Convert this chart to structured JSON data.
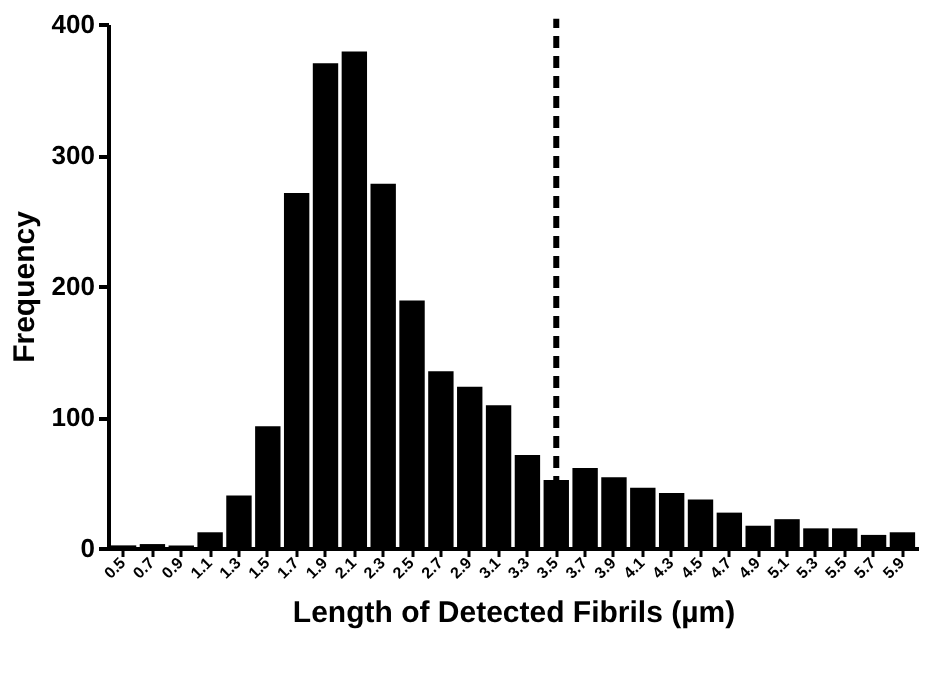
{
  "chart_data": {
    "type": "bar",
    "xlabel": "Length of Detected Fibrils (µm)",
    "ylabel": "Frequency",
    "categories": [
      "0.5",
      "0.7",
      "0.9",
      "1.1",
      "1.3",
      "1.5",
      "1.7",
      "1.9",
      "2.1",
      "2.3",
      "2.5",
      "2.7",
      "2.9",
      "3.1",
      "3.3",
      "3.5",
      "3.7",
      "3.9",
      "4.1",
      "4.3",
      "4.5",
      "4.7",
      "4.9",
      "5.1",
      "5.3",
      "5.5",
      "5.7",
      "5.9"
    ],
    "values": [
      2,
      3,
      2,
      12,
      40,
      93,
      271,
      370,
      379,
      278,
      189,
      135,
      123,
      109,
      71,
      52,
      61,
      54,
      46,
      42,
      37,
      27,
      17,
      22,
      15,
      15,
      10,
      12
    ],
    "color": "#000000",
    "ylim": [
      0,
      400
    ],
    "yticks": [
      0,
      100,
      200,
      300,
      400
    ],
    "grid": false,
    "ref_lines": [
      {
        "axis": "x",
        "value": "3.5",
        "color": "#000000",
        "line_style": "dashed"
      }
    ]
  }
}
